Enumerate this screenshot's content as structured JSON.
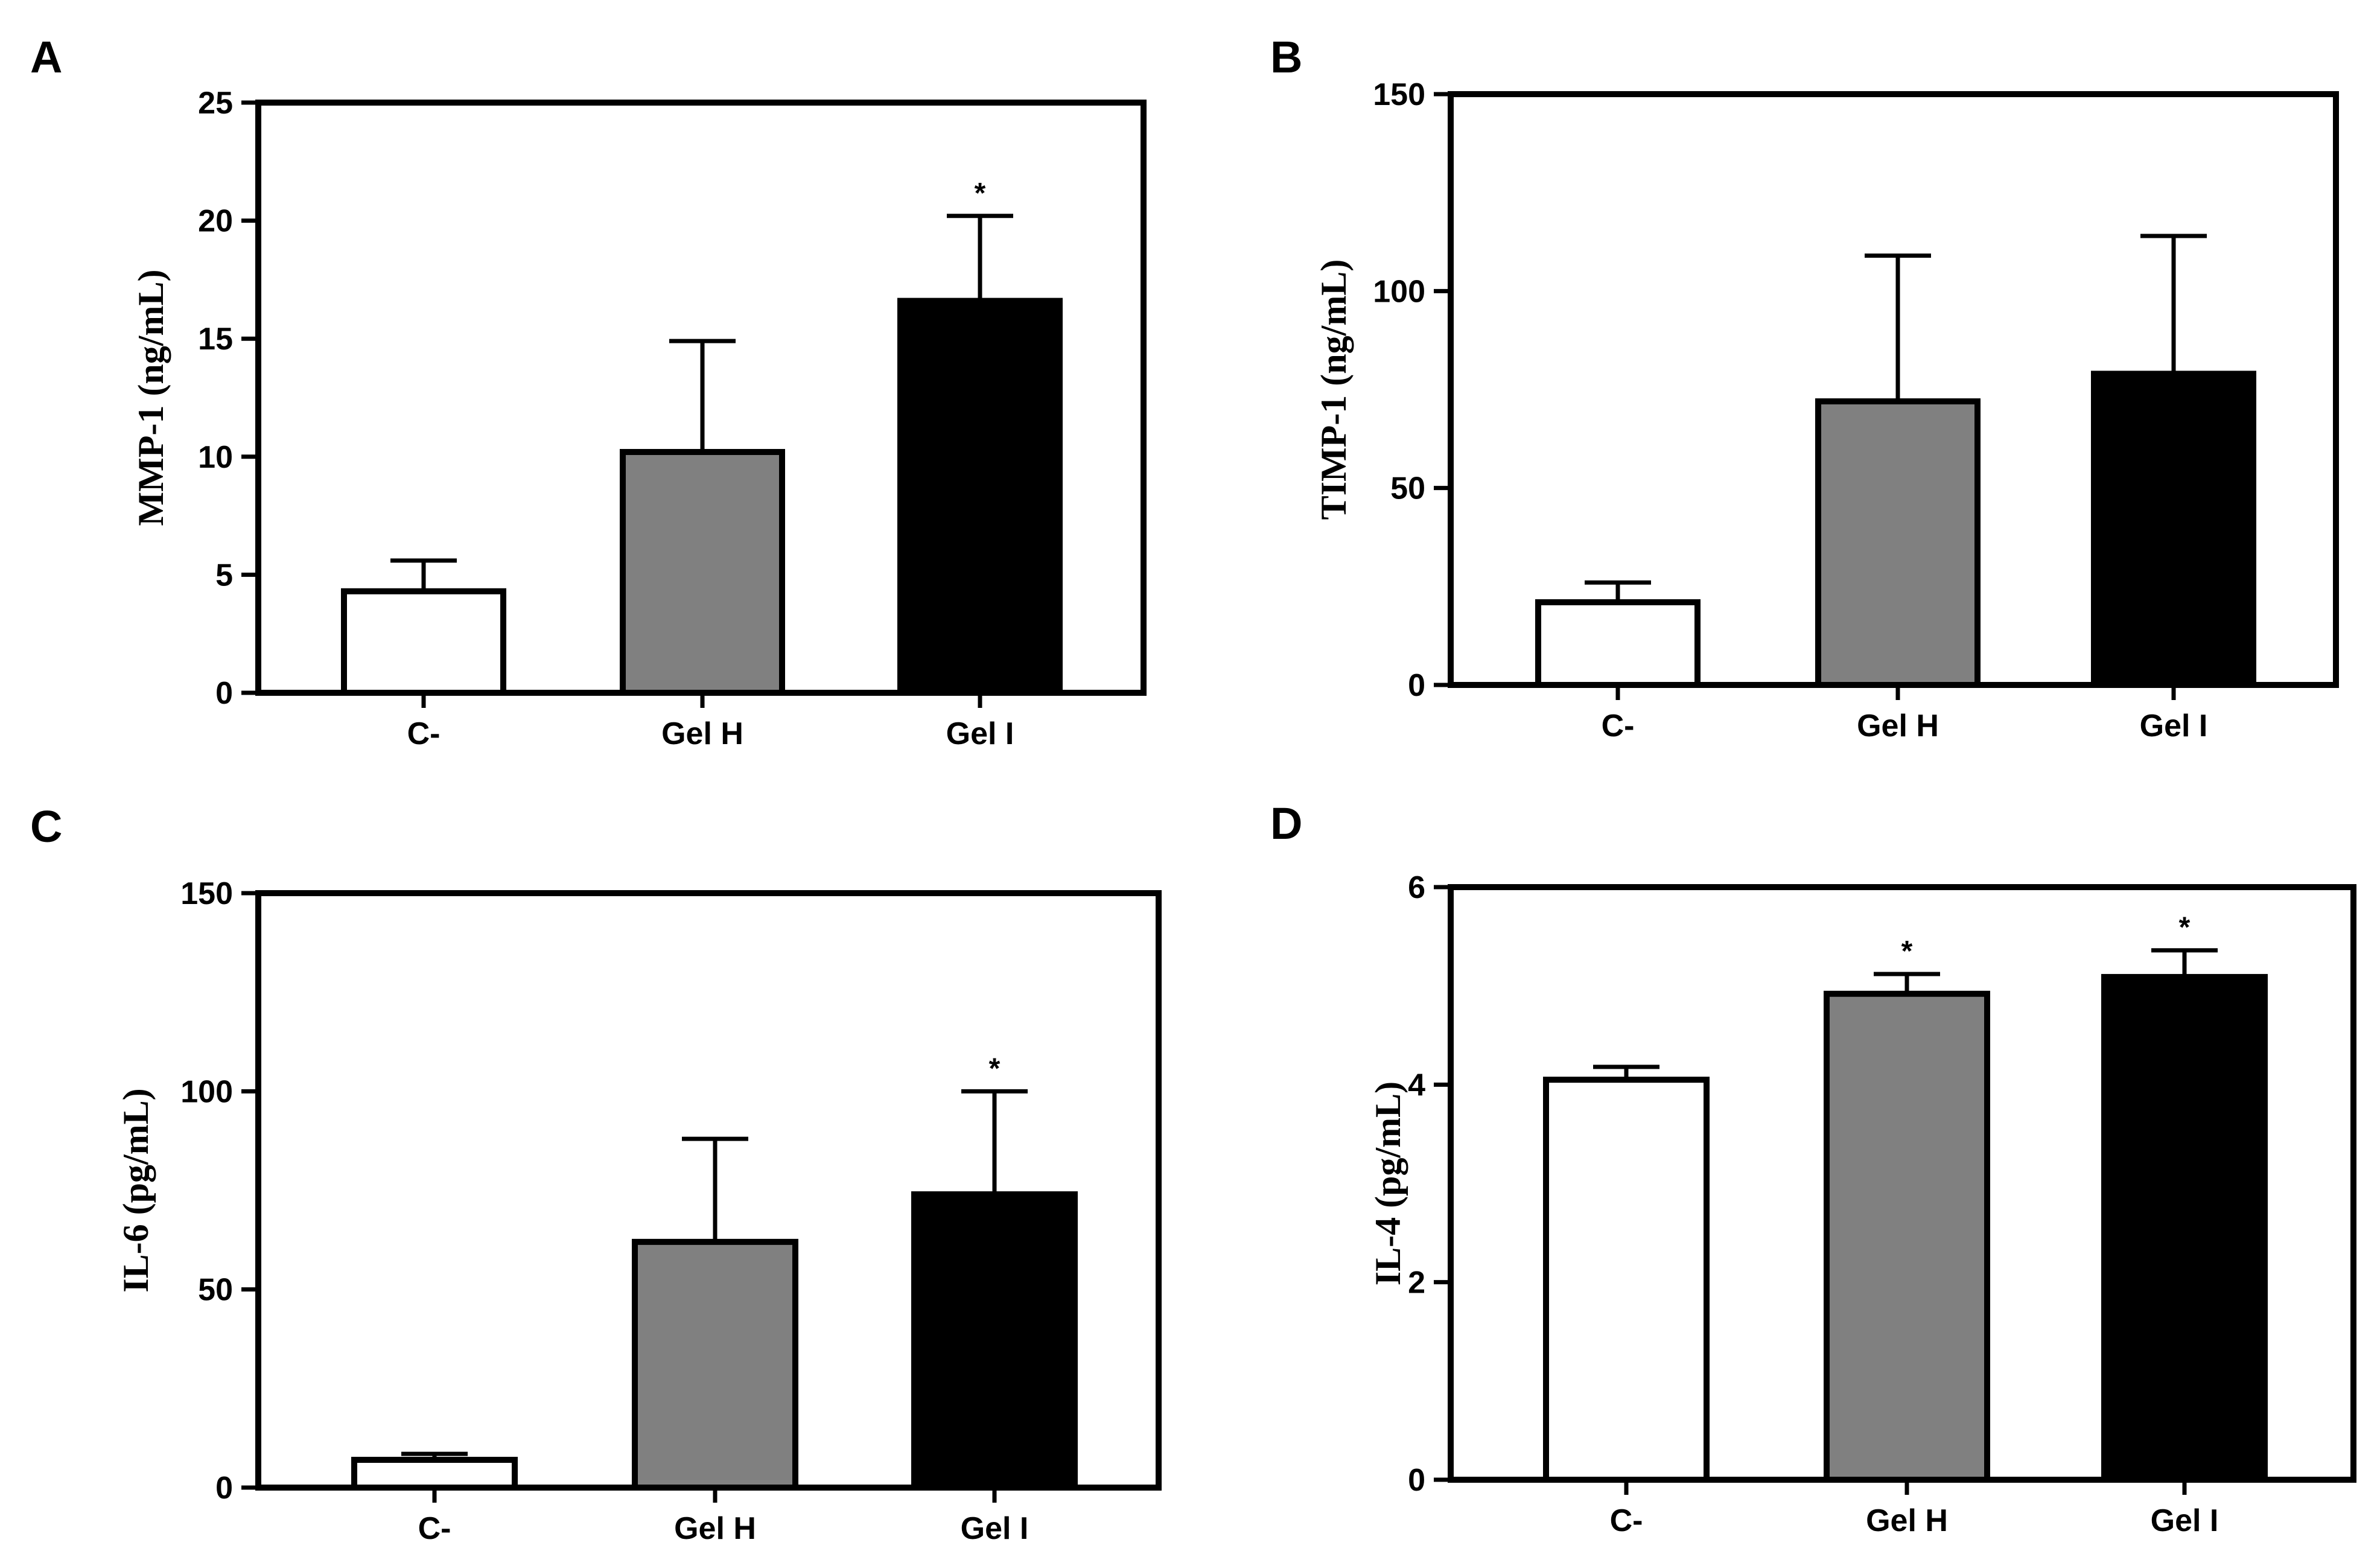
{
  "chart_data": [
    {
      "panel": "A",
      "type": "bar",
      "categories": [
        "C-",
        "Gel H",
        "Gel I"
      ],
      "values": [
        4.3,
        10.2,
        16.6
      ],
      "errors": [
        1.3,
        4.7,
        3.6
      ],
      "significance": [
        "",
        "",
        "*"
      ],
      "bar_colors": [
        "#ffffff",
        "#808080",
        "#000000"
      ],
      "ylabel": "MMP-1 (ng/mL)",
      "ylim": [
        0,
        25
      ],
      "yticks": [
        0,
        5,
        10,
        15,
        20,
        25
      ]
    },
    {
      "panel": "B",
      "type": "bar",
      "categories": [
        "C-",
        "Gel H",
        "Gel I"
      ],
      "values": [
        21,
        72,
        79
      ],
      "errors": [
        5,
        37,
        35
      ],
      "significance": [
        "",
        "",
        ""
      ],
      "bar_colors": [
        "#ffffff",
        "#808080",
        "#000000"
      ],
      "ylabel": "TIMP-1 (ng/mL)",
      "ylim": [
        0,
        150
      ],
      "yticks": [
        0,
        50,
        100,
        150
      ]
    },
    {
      "panel": "C",
      "type": "bar",
      "categories": [
        "C-",
        "Gel H",
        "Gel I"
      ],
      "values": [
        7,
        62,
        74
      ],
      "errors": [
        1.5,
        26,
        26
      ],
      "significance": [
        "",
        "",
        "*"
      ],
      "bar_colors": [
        "#ffffff",
        "#808080",
        "#000000"
      ],
      "ylabel": "IL-6 (pg/mL)",
      "ylim": [
        0,
        150
      ],
      "yticks": [
        0,
        50,
        100,
        150
      ]
    },
    {
      "panel": "D",
      "type": "bar",
      "categories": [
        "C-",
        "Gel H",
        "Gel I"
      ],
      "values": [
        4.05,
        4.92,
        5.09
      ],
      "errors": [
        0.13,
        0.2,
        0.27
      ],
      "significance": [
        "",
        "*",
        "*"
      ],
      "bar_colors": [
        "#ffffff",
        "#808080",
        "#000000"
      ],
      "ylabel": "IL-4 (pg/mL)",
      "ylim": [
        0,
        6
      ],
      "yticks": [
        0,
        2,
        4,
        6
      ]
    }
  ]
}
